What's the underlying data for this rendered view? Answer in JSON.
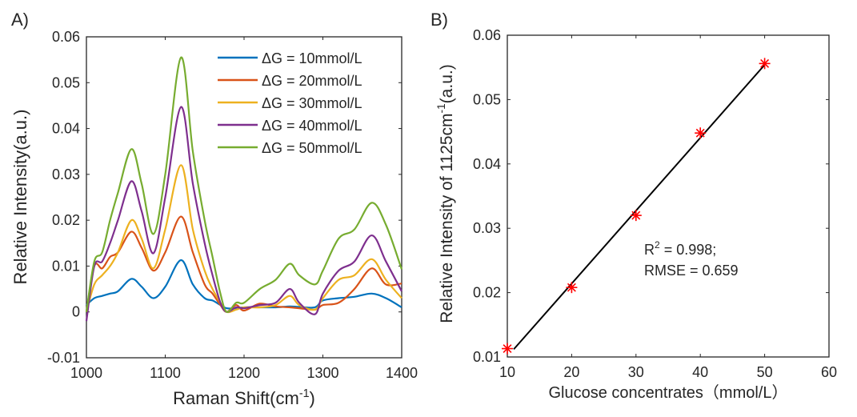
{
  "chart_data": [
    {
      "panel_label": "A)",
      "type": "line",
      "xlabel": {
        "text": "Raman Shift(cm",
        "sup": "-1",
        "after": ")"
      },
      "ylabel": "Relative Intensity(a.u.)",
      "xlim": [
        1000,
        1400
      ],
      "ylim": [
        -0.01,
        0.06
      ],
      "xticks": [
        "1000",
        "1100",
        "1200",
        "1300",
        "1400"
      ],
      "xtick_values": [
        1000,
        1100,
        1200,
        1300,
        1400
      ],
      "yticks": [
        "-0.01",
        "0",
        "0.01",
        "0.02",
        "0.03",
        "0.04",
        "0.05",
        "0.06"
      ],
      "ytick_values": [
        -0.01,
        0,
        0.01,
        0.02,
        0.03,
        0.04,
        0.05,
        0.06
      ],
      "grid": false,
      "legend_position": "top-right",
      "x": [
        1000,
        1010,
        1020,
        1030,
        1040,
        1057,
        1070,
        1085,
        1100,
        1120,
        1135,
        1150,
        1160,
        1170,
        1178,
        1190,
        1200,
        1220,
        1240,
        1258,
        1270,
        1290,
        1300,
        1320,
        1340,
        1362,
        1380,
        1400
      ],
      "series": [
        {
          "name": "ΔG = 10mmol/L",
          "color": "#0072BD",
          "values": [
            0.0015,
            0.003,
            0.0035,
            0.004,
            0.0045,
            0.0072,
            0.0055,
            0.003,
            0.0055,
            0.0113,
            0.006,
            0.003,
            0.0025,
            0.0015,
            0.0008,
            0.0008,
            0.001,
            0.001,
            0.001,
            0.0012,
            0.0011,
            0.001,
            0.0025,
            0.003,
            0.0033,
            0.004,
            0.003,
            0.001
          ]
        },
        {
          "name": "ΔG = 20mmol/L",
          "color": "#D95319",
          "values": [
            0,
            0.01,
            0.0095,
            0.012,
            0.013,
            0.0175,
            0.014,
            0.009,
            0.013,
            0.0208,
            0.013,
            0.006,
            0.004,
            0.0015,
            0,
            0.0015,
            0.0003,
            0.0018,
            0.0012,
            0.001,
            0.0008,
            0.0005,
            0.0015,
            0.002,
            0.005,
            0.0095,
            0.006,
            0.0062
          ]
        },
        {
          "name": "ΔG = 30mmol/L",
          "color": "#EDB120",
          "values": [
            0,
            0.006,
            0.008,
            0.01,
            0.013,
            0.02,
            0.016,
            0.0095,
            0.018,
            0.032,
            0.018,
            0.009,
            0.005,
            0.002,
            0,
            0.0005,
            0.001,
            0.001,
            0.0015,
            0.0035,
            0.0015,
            0.0005,
            0.003,
            0.007,
            0.008,
            0.0115,
            0.007,
            0.003
          ]
        },
        {
          "name": "ΔG = 40mmol/L",
          "color": "#7E2F8E",
          "values": [
            -0.002,
            0.01,
            0.011,
            0.015,
            0.02,
            0.0285,
            0.022,
            0.0128,
            0.025,
            0.0447,
            0.028,
            0.015,
            0.008,
            0.002,
            0,
            0.001,
            0.0008,
            0.0015,
            0.002,
            0.005,
            0.002,
            -0.0005,
            0.004,
            0.009,
            0.011,
            0.0167,
            0.011,
            0.0045
          ]
        },
        {
          "name": "ΔG = 50mmol/L",
          "color": "#77AC30",
          "values": [
            0,
            0.011,
            0.013,
            0.02,
            0.026,
            0.0355,
            0.028,
            0.017,
            0.03,
            0.0555,
            0.035,
            0.02,
            0.012,
            0.004,
            0,
            0.002,
            0.002,
            0.005,
            0.007,
            0.0105,
            0.008,
            0.006,
            0.009,
            0.016,
            0.018,
            0.0238,
            0.019,
            0.0093
          ]
        }
      ]
    },
    {
      "panel_label": "B)",
      "type": "scatter",
      "xlabel": {
        "text": "Glucose concentrates（mmol/L）"
      },
      "ylabel": {
        "text": "Relative Intensity of 1125cm",
        "sup": "-1",
        "after": "(a.u.)"
      },
      "xlim": [
        10,
        60
      ],
      "ylim": [
        0.01,
        0.06
      ],
      "xticks": [
        "10",
        "20",
        "30",
        "40",
        "50",
        "60"
      ],
      "xtick_values": [
        10,
        20,
        30,
        40,
        50,
        60
      ],
      "yticks": [
        "0.01",
        "0.02",
        "0.03",
        "0.04",
        "0.05",
        "0.06"
      ],
      "ytick_values": [
        0.01,
        0.02,
        0.03,
        0.04,
        0.05,
        0.06
      ],
      "grid": false,
      "marker": "asterisk",
      "marker_color": "#FF0000",
      "points": {
        "x": [
          10,
          20,
          30,
          40,
          50
        ],
        "y": [
          0.0113,
          0.0208,
          0.032,
          0.0448,
          0.0556
        ]
      },
      "fit_line": {
        "x": [
          11,
          50
        ],
        "y": [
          0.0112,
          0.0554
        ],
        "color": "#000000"
      },
      "annotation": {
        "r2_label": "R",
        "r2_sup": "2",
        "r2_value": " = 0.998;",
        "rmse": "RMSE = 0.659"
      }
    }
  ]
}
